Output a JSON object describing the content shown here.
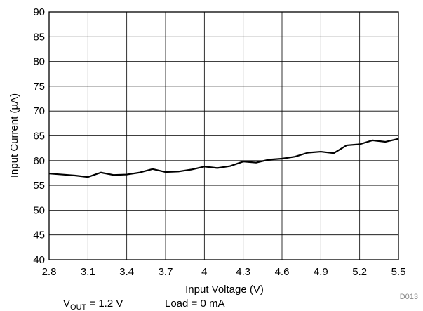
{
  "chart_data": {
    "type": "line",
    "xlabel": "Input Voltage (V)",
    "ylabel": "Input Current (µA)",
    "xlim": [
      2.8,
      5.5
    ],
    "ylim": [
      40,
      90
    ],
    "xticks": [
      "2.8",
      "3.1",
      "3.4",
      "3.7",
      "4",
      "4.3",
      "4.6",
      "4.9",
      "5.2",
      "5.5"
    ],
    "yticks": [
      "40",
      "45",
      "50",
      "55",
      "60",
      "65",
      "70",
      "75",
      "80",
      "85",
      "90"
    ],
    "grid": true,
    "series": [
      {
        "x": [
          2.8,
          2.9,
          3.0,
          3.1,
          3.2,
          3.3,
          3.4,
          3.5,
          3.6,
          3.7,
          3.8,
          3.9,
          4.0,
          4.1,
          4.2,
          4.3,
          4.4,
          4.5,
          4.6,
          4.7,
          4.8,
          4.9,
          5.0,
          5.1,
          5.2,
          5.3,
          5.4,
          5.5
        ],
        "y": [
          57.4,
          57.2,
          57.0,
          56.7,
          57.6,
          57.1,
          57.2,
          57.6,
          58.3,
          57.7,
          57.8,
          58.2,
          58.8,
          58.5,
          58.9,
          59.8,
          59.6,
          60.2,
          60.4,
          60.8,
          61.6,
          61.8,
          61.5,
          63.1,
          63.3,
          64.1,
          63.8,
          64.4
        ],
        "color": "#000000"
      }
    ],
    "vout_prefix": "V",
    "vout_subscript": "OUT",
    "vout_value": " = 1.2 V",
    "load_note": "Load = 0 mA",
    "figure_code": "D013"
  }
}
